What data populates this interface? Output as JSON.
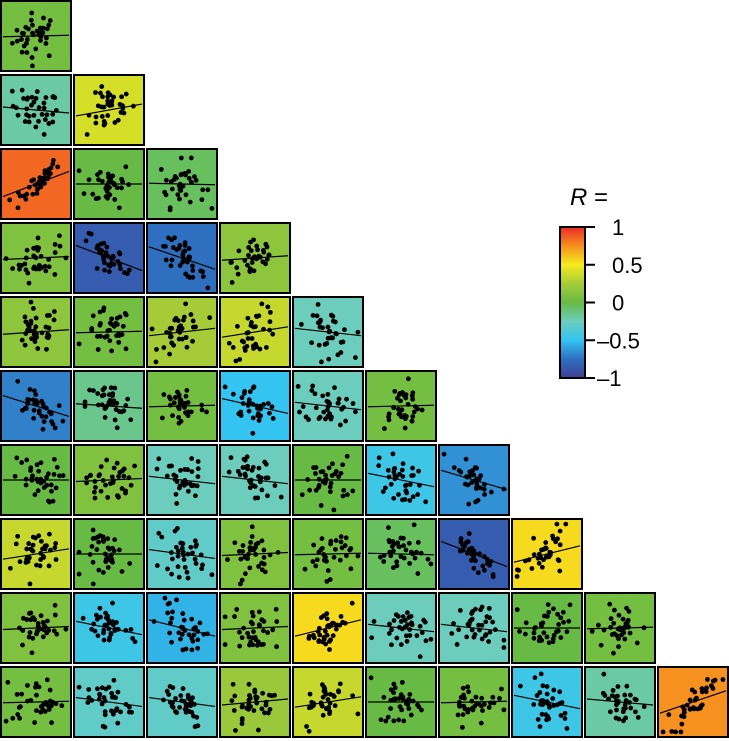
{
  "chart_data": {
    "type": "heatmap",
    "layout": "lower-triangular scatterplot matrix",
    "rows": 10,
    "r_values": [
      [
        0.05
      ],
      [
        -0.2,
        0.4
      ],
      [
        0.85,
        0.0,
        -0.05
      ],
      [
        0.1,
        -0.85,
        -0.75,
        0.15
      ],
      [
        0.15,
        0.05,
        0.25,
        0.35,
        -0.25
      ],
      [
        -0.7,
        -0.15,
        0.05,
        -0.5,
        -0.25,
        0.05
      ],
      [
        0.0,
        0.1,
        -0.25,
        -0.25,
        0.0,
        -0.45,
        -0.65
      ],
      [
        0.35,
        0.0,
        -0.3,
        0.1,
        0.05,
        -0.05,
        -0.85,
        0.55
      ],
      [
        0.1,
        -0.45,
        -0.55,
        0.1,
        0.55,
        -0.25,
        -0.25,
        0.0,
        0.05
      ],
      [
        0.05,
        -0.3,
        -0.3,
        0.2,
        0.35,
        0.0,
        0.05,
        -0.45,
        -0.2,
        0.75
      ]
    ],
    "colorbar": {
      "title": "R =",
      "range": [
        -1,
        1
      ],
      "ticks": [
        1,
        0.5,
        0,
        -0.5,
        -1
      ],
      "tick_labels": [
        "1",
        "0.5",
        "0",
        "–0.5",
        "–1"
      ],
      "colors": [
        "#3f3f96",
        "#2f6fc0",
        "#33c4f2",
        "#6ccdbd",
        "#67bb45",
        "#a6cb38",
        "#f5ec1e",
        "#f6901f",
        "#ec2a26"
      ],
      "placement": "right"
    }
  }
}
